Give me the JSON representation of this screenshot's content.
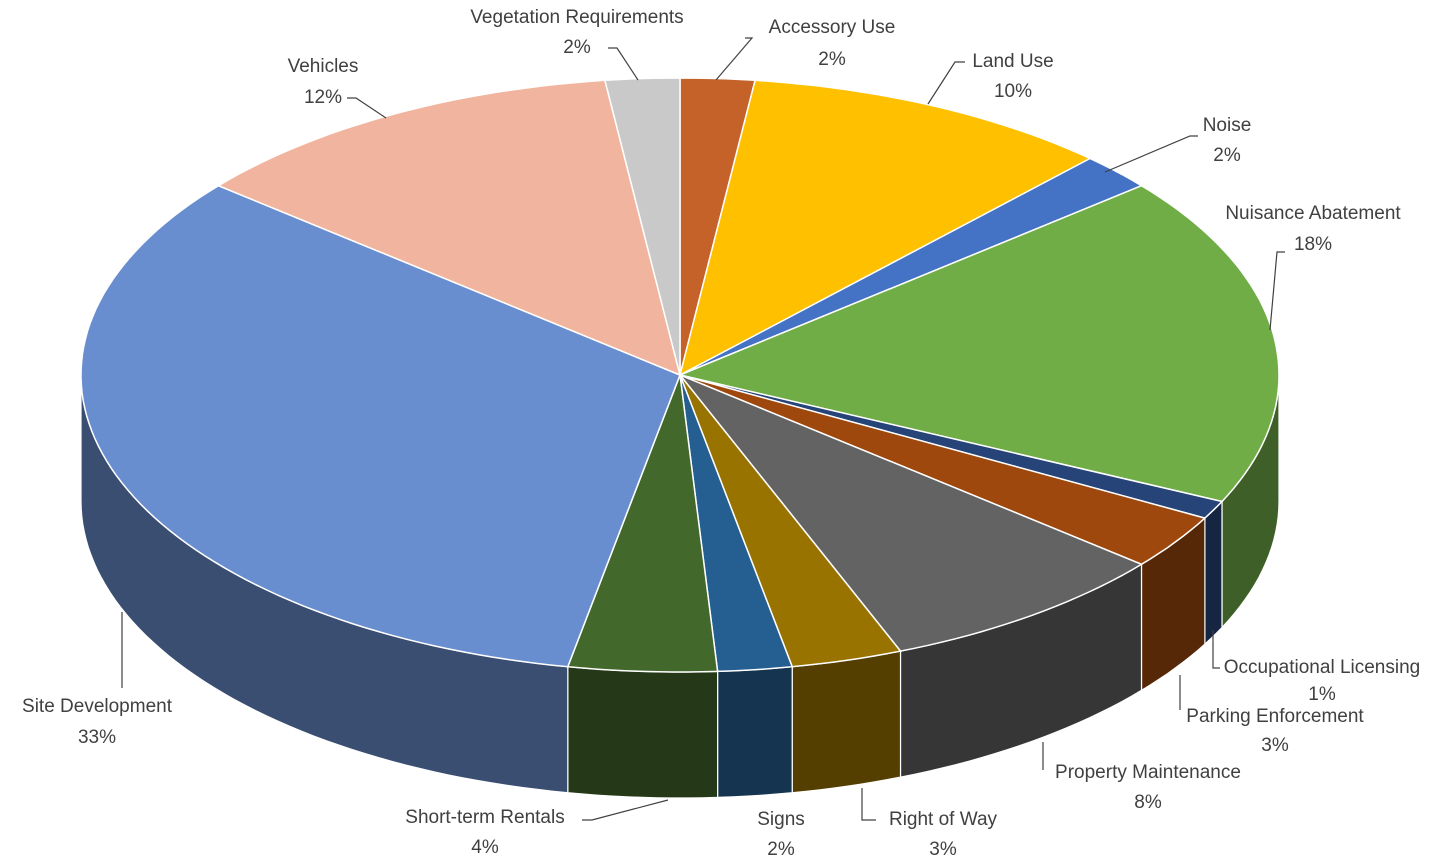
{
  "chart_data": {
    "type": "pie3d",
    "categories": [
      "Accessory Use",
      "Land Use",
      "Noise",
      "Nuisance Abatement",
      "Occupational Licensing",
      "Parking Enforcement",
      "Property Maintenance",
      "Right of Way",
      "Signs",
      "Short-term Rentals",
      "Site Development",
      "Vehicles",
      "Vegetation Requirements"
    ],
    "values": [
      2,
      10,
      2,
      18,
      1,
      3,
      8,
      3,
      2,
      4,
      33,
      12,
      2
    ],
    "value_labels": [
      "2%",
      "10%",
      "2%",
      "18%",
      "1%",
      "3%",
      "8%",
      "3%",
      "2%",
      "4%",
      "33%",
      "12%",
      "2%"
    ],
    "colors": [
      "#c4622a",
      "#ffc000",
      "#4472c4",
      "#70ad47",
      "#264478",
      "#9e480e",
      "#636363",
      "#997300",
      "#255e91",
      "#43682b",
      "#698ed0",
      "#f1b59f",
      "#c9c9c9"
    ]
  }
}
